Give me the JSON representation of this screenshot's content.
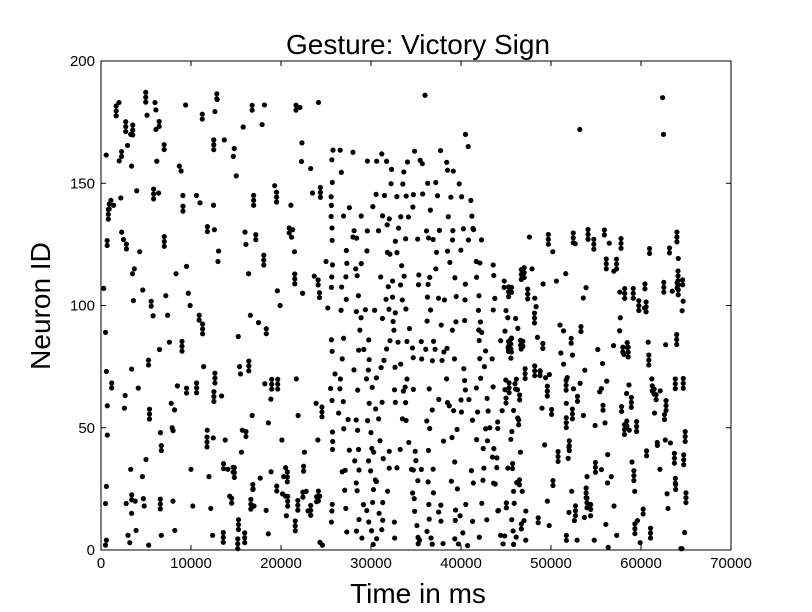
{
  "chart_data": {
    "type": "scatter",
    "title": "Gesture: Victory Sign",
    "xlabel": "Time in ms",
    "ylabel": "Neuron ID",
    "xlim": [
      0,
      70000
    ],
    "ylim": [
      0,
      200
    ],
    "xticks": [
      "0",
      "10000",
      "20000",
      "30000",
      "40000",
      "50000",
      "60000",
      "70000"
    ],
    "yticks": [
      "0",
      "50",
      "100",
      "150",
      "200"
    ],
    "grid": false,
    "marker_color": "#000000",
    "density_profile": {
      "description_hidden": "",
      "dense_band_time": [
        25000,
        45000
      ],
      "sparse_after": 65000
    },
    "series": [
      {
        "values": [
          [
            300,
            107
          ],
          [
            500,
            89
          ],
          [
            600,
            73
          ],
          [
            700,
            59
          ],
          [
            700,
            47
          ],
          [
            600,
            26
          ],
          [
            500,
            19
          ],
          [
            600,
            4
          ],
          [
            500,
            2
          ],
          [
            1100,
            143
          ],
          [
            1400,
            141
          ],
          [
            2000,
            183
          ],
          [
            2200,
            144
          ],
          [
            2300,
            130
          ],
          [
            2500,
            127
          ],
          [
            2600,
            58
          ],
          [
            2800,
            19
          ],
          [
            3000,
            6
          ],
          [
            3200,
            3
          ],
          [
            3300,
            170
          ],
          [
            3400,
            157
          ],
          [
            3700,
            115
          ],
          [
            3500,
            113
          ],
          [
            3600,
            102
          ],
          [
            3400,
            74
          ],
          [
            3300,
            33
          ],
          [
            3400,
            15
          ],
          [
            3800,
            20
          ],
          [
            3900,
            8
          ],
          [
            4300,
            122
          ],
          [
            4600,
            30
          ],
          [
            4800,
            18
          ],
          [
            5000,
            37
          ],
          [
            5300,
            2
          ],
          [
            6000,
            183
          ],
          [
            6100,
            180
          ],
          [
            6100,
            172
          ],
          [
            6200,
            159
          ],
          [
            6400,
            146
          ],
          [
            6500,
            82
          ],
          [
            6600,
            48
          ],
          [
            6700,
            6
          ],
          [
            7200,
            104
          ],
          [
            7400,
            96
          ],
          [
            7600,
            85
          ],
          [
            7800,
            60
          ],
          [
            7900,
            50
          ],
          [
            8000,
            20
          ],
          [
            8200,
            8
          ],
          [
            8700,
            157
          ],
          [
            8900,
            155
          ],
          [
            9100,
            145
          ],
          [
            9400,
            182
          ],
          [
            9500,
            116
          ],
          [
            9700,
            105
          ],
          [
            9900,
            100
          ],
          [
            10000,
            33
          ],
          [
            10200,
            18
          ],
          [
            10600,
            145
          ],
          [
            11000,
            142
          ],
          [
            11400,
            75
          ],
          [
            11800,
            49
          ],
          [
            12000,
            30
          ],
          [
            12200,
            17
          ],
          [
            12400,
            6
          ],
          [
            12500,
            141
          ],
          [
            12600,
            131
          ],
          [
            13000,
            118
          ],
          [
            13400,
            63
          ],
          [
            13800,
            45
          ],
          [
            14100,
            33
          ],
          [
            14300,
            22
          ],
          [
            14700,
            161
          ],
          [
            15400,
            75
          ],
          [
            15500,
            72
          ],
          [
            15700,
            49
          ],
          [
            15600,
            40
          ],
          [
            15800,
            173
          ],
          [
            16000,
            130
          ],
          [
            16100,
            125
          ],
          [
            16400,
            113
          ],
          [
            16600,
            96
          ],
          [
            16800,
            55
          ],
          [
            16900,
            25
          ],
          [
            17000,
            18
          ],
          [
            17500,
            93
          ],
          [
            17900,
            174
          ],
          [
            18200,
            68
          ],
          [
            18600,
            52
          ],
          [
            18900,
            32
          ],
          [
            19300,
            149
          ],
          [
            19600,
            106
          ],
          [
            19900,
            100
          ],
          [
            20100,
            45
          ],
          [
            20300,
            30
          ],
          [
            20500,
            22
          ],
          [
            20600,
            14
          ],
          [
            21100,
            141
          ],
          [
            21300,
            131
          ],
          [
            21500,
            122
          ],
          [
            21700,
            70
          ],
          [
            21900,
            55
          ],
          [
            22100,
            181
          ],
          [
            22400,
            105
          ],
          [
            22600,
            40
          ],
          [
            22800,
            24
          ],
          [
            23000,
            16
          ],
          [
            23300,
            156
          ],
          [
            23500,
            146
          ],
          [
            23700,
            112
          ],
          [
            23900,
            60
          ],
          [
            24100,
            45
          ],
          [
            24300,
            22
          ],
          [
            24600,
            2
          ],
          [
            25000,
            118
          ],
          [
            25200,
            99
          ],
          [
            25600,
            86
          ],
          [
            26000,
            72
          ],
          [
            26400,
            56
          ],
          [
            26800,
            32
          ],
          [
            27200,
            17
          ],
          [
            27600,
            140
          ],
          [
            28000,
            128
          ],
          [
            28300,
            115
          ],
          [
            28600,
            104
          ],
          [
            28900,
            95
          ],
          [
            29200,
            82
          ],
          [
            29500,
            70
          ],
          [
            29800,
            60
          ],
          [
            30000,
            48
          ],
          [
            30300,
            40
          ],
          [
            30600,
            28
          ],
          [
            30900,
            15
          ],
          [
            31200,
            162
          ],
          [
            31500,
            145
          ],
          [
            31800,
            133
          ],
          [
            32100,
            121
          ],
          [
            32400,
            110
          ],
          [
            32700,
            97
          ],
          [
            33000,
            85
          ],
          [
            33300,
            76
          ],
          [
            33600,
            65
          ],
          [
            33900,
            53
          ],
          [
            34200,
            44
          ],
          [
            34500,
            33
          ],
          [
            34800,
            21
          ],
          [
            35100,
            10
          ],
          [
            35400,
            4
          ],
          [
            35700,
            158
          ],
          [
            36000,
            186
          ],
          [
            36300,
            150
          ],
          [
            36600,
            139
          ],
          [
            36900,
            127
          ],
          [
            37200,
            115
          ],
          [
            37500,
            103
          ],
          [
            37800,
            92
          ],
          [
            38100,
            81
          ],
          [
            38400,
            70
          ],
          [
            38700,
            59
          ],
          [
            39000,
            46
          ],
          [
            39300,
            36
          ],
          [
            39600,
            25
          ],
          [
            39900,
            14
          ],
          [
            40200,
            7
          ],
          [
            40500,
            170
          ],
          [
            40800,
            165
          ],
          [
            41100,
            143
          ],
          [
            41400,
            131
          ],
          [
            41700,
            118
          ],
          [
            42000,
            104
          ],
          [
            42300,
            89
          ],
          [
            42600,
            75
          ],
          [
            42900,
            62
          ],
          [
            43200,
            50
          ],
          [
            43500,
            38
          ],
          [
            43800,
            27
          ],
          [
            44100,
            16
          ],
          [
            44400,
            6
          ],
          [
            44800,
            110
          ],
          [
            45200,
            95
          ],
          [
            45600,
            81
          ],
          [
            46000,
            68
          ],
          [
            46300,
            54
          ],
          [
            46600,
            40
          ],
          [
            46800,
            24
          ],
          [
            47000,
            12
          ],
          [
            47200,
            4
          ],
          [
            47600,
            128
          ],
          [
            47900,
            115
          ],
          [
            48200,
            103
          ],
          [
            48500,
            87
          ],
          [
            48800,
            73
          ],
          [
            49000,
            58
          ],
          [
            49300,
            43
          ],
          [
            49600,
            20
          ],
          [
            49800,
            10
          ],
          [
            50200,
            122
          ],
          [
            50600,
            110
          ],
          [
            51000,
            92
          ],
          [
            51400,
            76
          ],
          [
            51700,
            60
          ],
          [
            52000,
            42
          ],
          [
            52300,
            24
          ],
          [
            52600,
            12
          ],
          [
            52900,
            4
          ],
          [
            53200,
            172
          ],
          [
            53600,
            55
          ],
          [
            54000,
            30
          ],
          [
            54400,
            14
          ],
          [
            54800,
            4
          ],
          [
            55200,
            82
          ],
          [
            55600,
            66
          ],
          [
            56000,
            52
          ],
          [
            56300,
            39
          ],
          [
            56700,
            30
          ],
          [
            57000,
            18
          ],
          [
            57300,
            6
          ],
          [
            57700,
            95
          ],
          [
            58100,
            80
          ],
          [
            58400,
            64
          ],
          [
            58700,
            49
          ],
          [
            59000,
            36
          ],
          [
            59300,
            24
          ],
          [
            59600,
            12
          ],
          [
            59900,
            3
          ],
          [
            60400,
            99
          ],
          [
            60800,
            85
          ],
          [
            61200,
            70
          ],
          [
            61500,
            56
          ],
          [
            61800,
            44
          ],
          [
            62100,
            33
          ],
          [
            62400,
            185
          ],
          [
            62500,
            170
          ],
          [
            62700,
            45
          ],
          [
            62900,
            23
          ],
          [
            63000,
            17
          ]
        ]
      }
    ]
  }
}
